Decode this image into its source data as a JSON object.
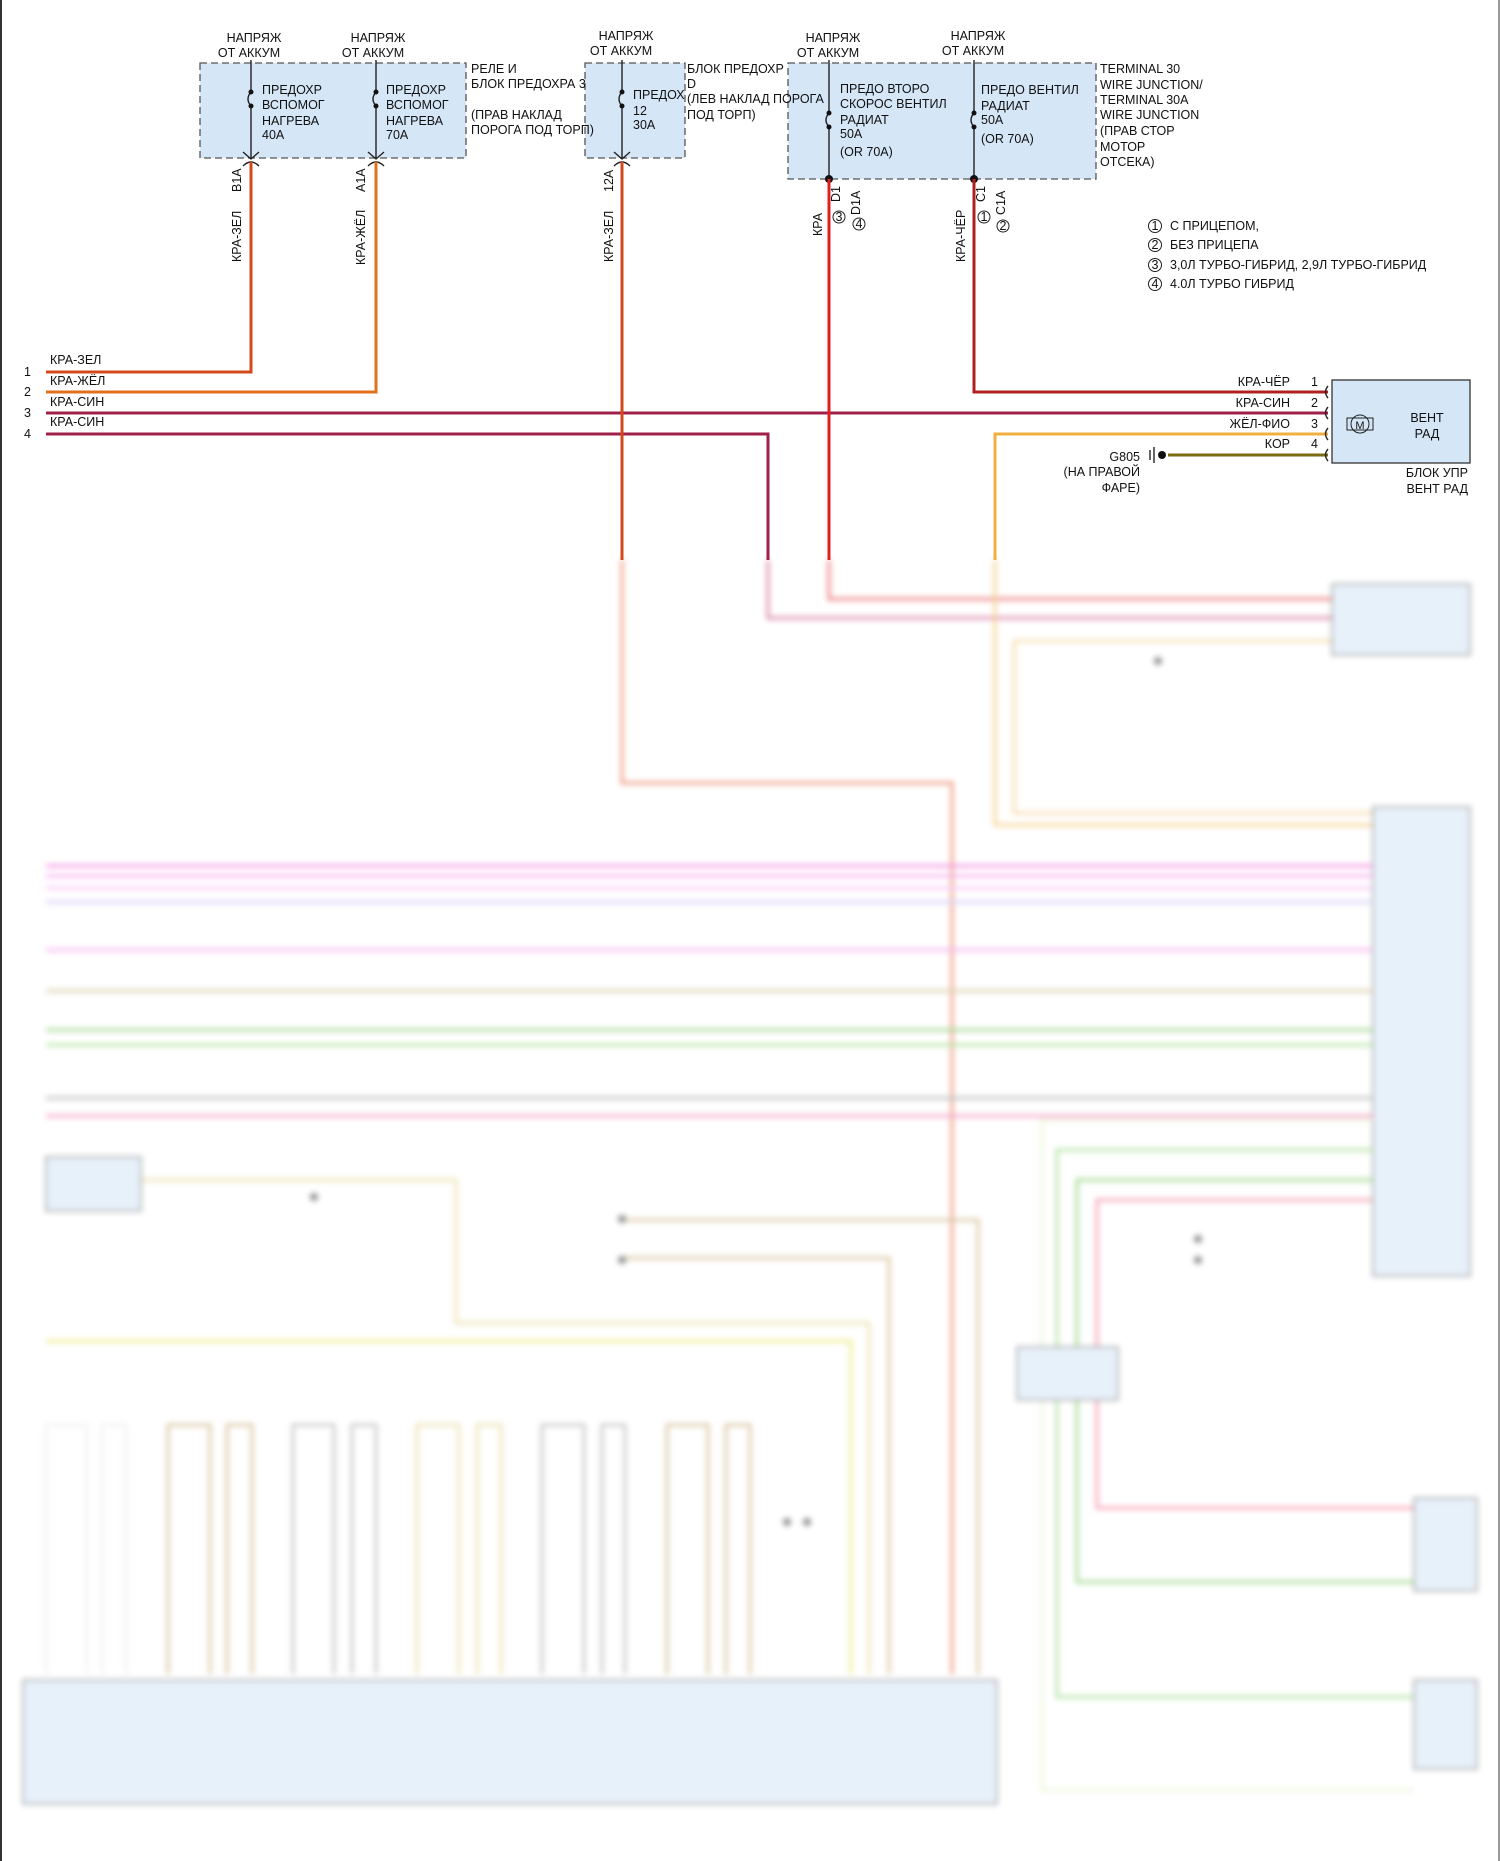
{
  "supplies": [
    "НАПРЯЖ",
    "ОТ АККУМ"
  ],
  "fuse_box_1": {
    "label": [
      "РЕЛЕ И",
      "БЛОК ПРЕДОХРА 3",
      "(ПРАВ НАКЛАД",
      "ПОРОГА ПОД ТОРП)"
    ],
    "fuses": [
      {
        "lines": [
          "ПРЕДОХР",
          "ВСПОМОГ",
          "НАГРЕВА",
          "40A"
        ],
        "pin": "B1A",
        "wire": "КРА-ЗЕЛ"
      },
      {
        "lines": [
          "ПРЕДОХР",
          "ВСПОМОГ",
          "НАГРЕВА",
          "70A"
        ],
        "pin": "A1A",
        "wire": "КРА-ЖЁЛ"
      }
    ]
  },
  "fuse_box_2": {
    "label": [
      "БЛОК ПРЕДОХР",
      "D",
      "(ЛЕВ НАКЛАД ПОРОГА",
      "ПОД ТОРП)"
    ],
    "fuse": {
      "lines": [
        "ПРЕДОХ",
        "12",
        "30A"
      ],
      "pin": "12A",
      "wire": "КРА-ЗЕЛ"
    }
  },
  "fuse_box_3": {
    "label": [
      "TERMINAL 30",
      "WIRE JUNCTION/",
      "TERMINAL 30A",
      "WIRE JUNCTION",
      "(ПРАВ СТОР",
      "МОТОР",
      "ОТСЕКА)"
    ],
    "fuses": [
      {
        "lines": [
          "ПРЕДО ВТОРО",
          "СКОРОС ВЕНТИЛ",
          "РАДИАТ",
          "50A",
          "(OR 70A)"
        ],
        "pins": [
          "D1",
          "D1A"
        ],
        "variants": [
          "3",
          "4"
        ],
        "wire": "КРА"
      },
      {
        "lines": [
          "ПРЕДО ВЕНТИЛ",
          "РАДИАТ",
          "50A",
          "(OR 70A)"
        ],
        "pins": [
          "C1",
          "C1A"
        ],
        "variants": [
          "1",
          "2"
        ],
        "wire": "КРА-ЧЁР"
      }
    ]
  },
  "legend": [
    {
      "num": "1",
      "text": "С ПРИЦЕПОМ,"
    },
    {
      "num": "2",
      "text": "БЕЗ ПРИЦЕПА"
    },
    {
      "num": "3",
      "text": "3,0Л ТУРБО-ГИБРИД, 2,9Л ТУРБО-ГИБРИД"
    },
    {
      "num": "4",
      "text": "4.0Л ТУРБО ГИБРИД"
    }
  ],
  "left_connector": [
    {
      "pin": "1",
      "wire": "КРА-ЗЕЛ"
    },
    {
      "pin": "2",
      "wire": "КРА-ЖЁЛ"
    },
    {
      "pin": "3",
      "wire": "КРА-СИН"
    },
    {
      "pin": "4",
      "wire": "КРА-СИН"
    }
  ],
  "fan_module": {
    "label": [
      "ВЕНТ",
      "РАД"
    ],
    "motor": "M",
    "caption": [
      "БЛОК УПР",
      "ВЕНТ РАД"
    ],
    "pins": [
      {
        "pin": "1",
        "wire": "КРА-ЧЁР"
      },
      {
        "pin": "2",
        "wire": "КРА-СИН"
      },
      {
        "pin": "3",
        "wire": "ЖЁЛ-ФИО"
      },
      {
        "pin": "4",
        "wire": "КОР"
      }
    ]
  },
  "ground": {
    "id": "G805",
    "location": [
      "(НА ПРАВОЙ",
      "ФАРЕ)"
    ]
  },
  "colors": {
    "box": "#d5e6f7",
    "red": "#e02020",
    "red_green": "#d2491a",
    "red_yellow": "#e0701a",
    "red_blue": "#a0204a",
    "yellow_violet": "#f0b040",
    "brown": "#7a6a10"
  }
}
